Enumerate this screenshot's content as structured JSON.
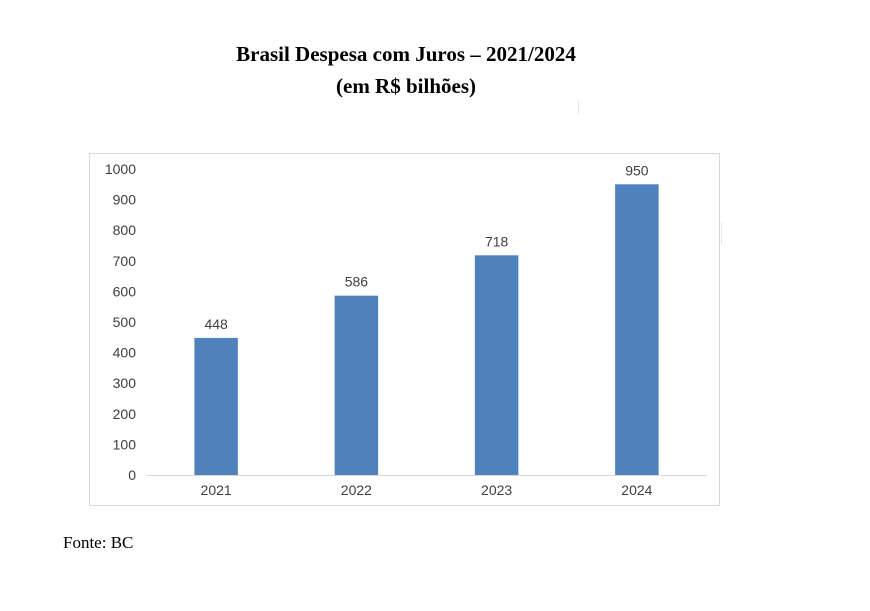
{
  "title": {
    "line1": "Brasil Despesa com Juros – 2021/2024",
    "line2": "(em R$ bilhões)"
  },
  "source": "Fonte: BC",
  "chart_data": {
    "type": "bar",
    "categories": [
      "2021",
      "2022",
      "2023",
      "2024"
    ],
    "values": [
      448,
      586,
      718,
      950
    ],
    "data_labels": [
      "448",
      "586",
      "718",
      "950"
    ],
    "ylim": [
      0,
      1000
    ],
    "yticks": [
      0,
      100,
      200,
      300,
      400,
      500,
      600,
      700,
      800,
      900,
      1000
    ],
    "ytick_labels": [
      "0",
      "100",
      "200",
      "300",
      "400",
      "500",
      "600",
      "700",
      "800",
      "900",
      "1000"
    ],
    "grid": false,
    "legend": "none",
    "bar_color": "#4f81bd",
    "axis_color": "#d9d9d9",
    "text_color": "#404040"
  }
}
